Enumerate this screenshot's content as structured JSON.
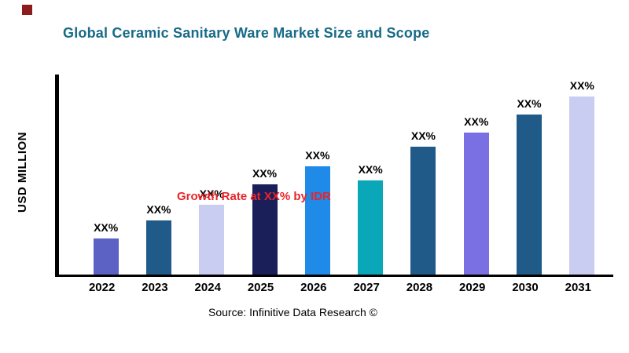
{
  "header": {
    "title": "Global Ceramic Sanitary Ware  Market Size and Scope",
    "title_color": "#176b87",
    "brand_mark_color": "#8e1b1b"
  },
  "chart_data": {
    "type": "bar",
    "title": "Global Ceramic Sanitary Ware  Market Size and Scope",
    "categories": [
      "2022",
      "2023",
      "2024",
      "2025",
      "2026",
      "2027",
      "2028",
      "2029",
      "2030",
      "2031"
    ],
    "values": [
      18,
      27,
      35,
      45,
      54,
      47,
      64,
      71,
      80,
      89
    ],
    "bar_labels": [
      "XX%",
      "XX%",
      "XX%",
      "XX%",
      "XX%",
      "XX%",
      "XX%",
      "XX%",
      "XX%",
      "XX%"
    ],
    "bar_colors": [
      "#5c61c4",
      "#1f5a89",
      "#c9cdf1",
      "#1a1f5a",
      "#1f8ae8",
      "#0aa7b8",
      "#1f5a89",
      "#7b70e3",
      "#1f5a89",
      "#c9cdf1"
    ],
    "xlabel": "",
    "ylabel": "USD MILLION",
    "ylim": [
      0,
      100
    ],
    "grid": false,
    "legend": "none",
    "annotation": "Growth Rate at XX% by IDR",
    "annotation_color": "#e8252a",
    "axis_color": "#000000"
  },
  "footer": {
    "source": "Source: Infinitive Data Research ©"
  }
}
